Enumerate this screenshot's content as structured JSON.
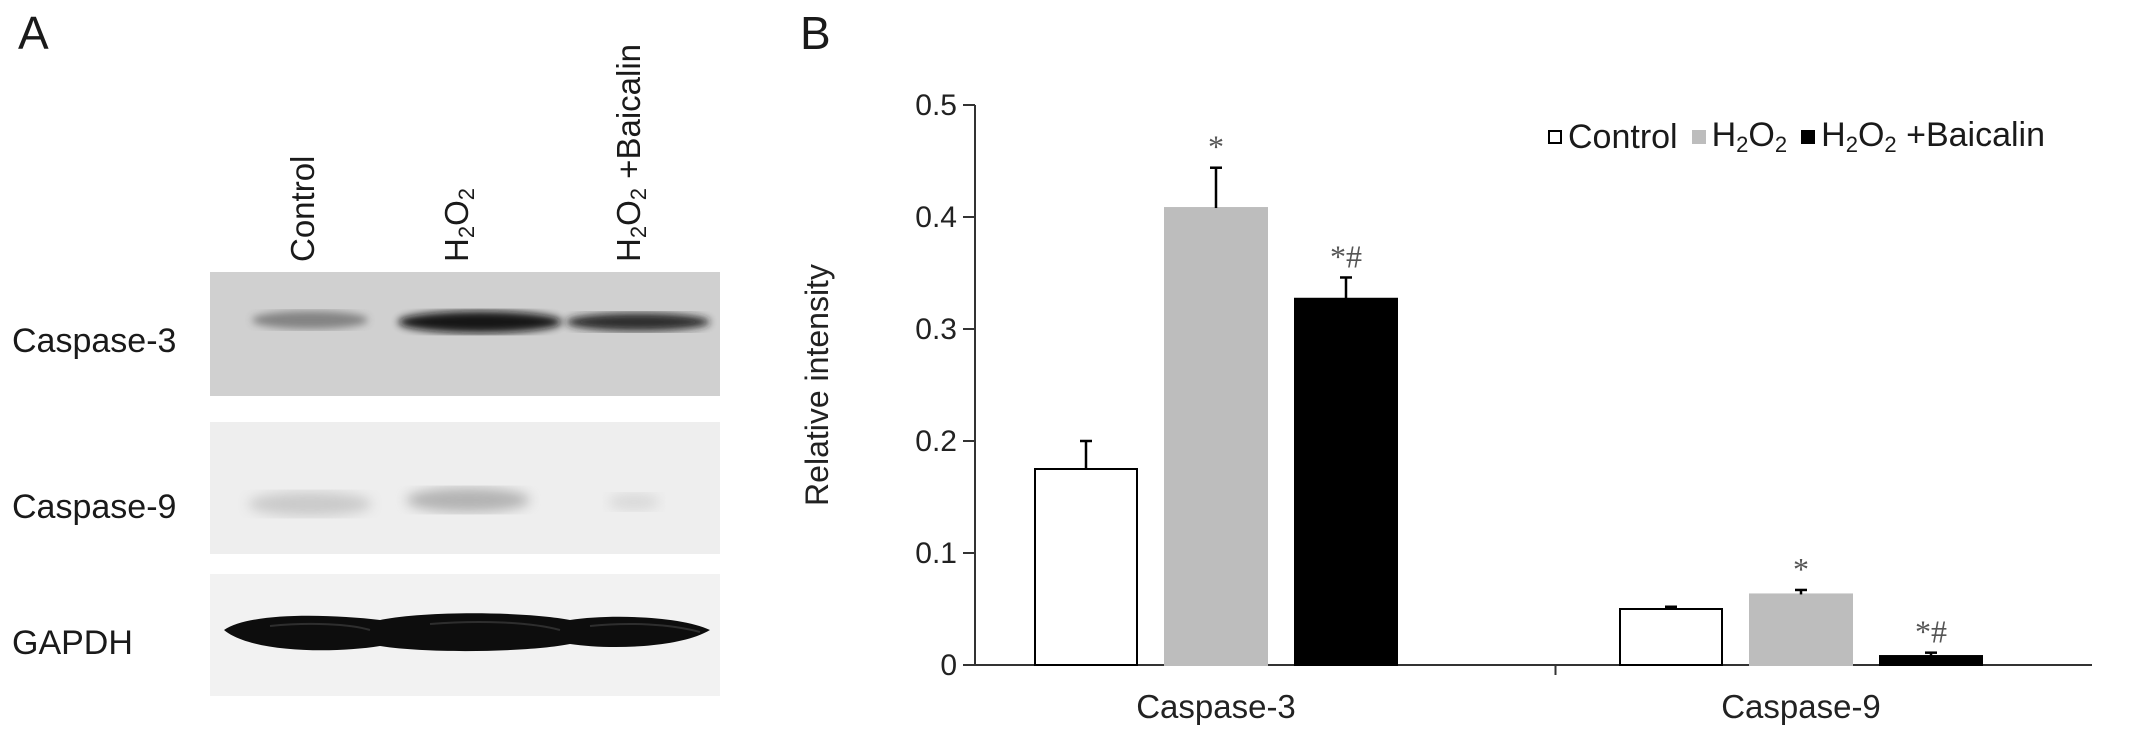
{
  "panel_a": {
    "letter": "A",
    "lanes": [
      {
        "base": "Control",
        "subscripts": []
      },
      {
        "base": "H2O2",
        "parts": [
          "H",
          "2",
          "O",
          "2",
          ""
        ]
      },
      {
        "base": "H2O2 +Baicalin",
        "parts": [
          "H",
          "2",
          "O",
          "2",
          " +Baicalin"
        ]
      }
    ],
    "lane_control": "Control",
    "rows": [
      "Caspase-3",
      "Caspase-9",
      "GAPDH"
    ]
  },
  "panel_b": {
    "letter": "B"
  },
  "legend": [
    {
      "name": "Control",
      "color": "#ffffff"
    },
    {
      "name": "H2O2",
      "color": "#bdbdbd"
    },
    {
      "name": "H2O2 +Baicalin",
      "color": "#000000"
    }
  ],
  "chart_data": {
    "type": "bar",
    "categories": [
      "Caspase-3",
      "Caspase-9"
    ],
    "ylabel": "Relative intensity",
    "ylim": [
      0,
      0.5
    ],
    "yticks": [
      "0",
      "0.1",
      "0.2",
      "0.3",
      "0.4",
      "0.5"
    ],
    "series": [
      {
        "name": "Control",
        "color": "#ffffff",
        "values": [
          0.175,
          0.05
        ],
        "errors": [
          0.025,
          0.002
        ],
        "sig": [
          "",
          ""
        ]
      },
      {
        "name": "H2O2",
        "color": "#bdbdbd",
        "values": [
          0.408,
          0.063
        ],
        "errors": [
          0.036,
          0.004
        ],
        "sig": [
          "*",
          "*"
        ]
      },
      {
        "name": "H2O2 +Baicalin",
        "color": "#000000",
        "values": [
          0.327,
          0.008
        ],
        "errors": [
          0.019,
          0.003
        ],
        "sig": [
          "*#",
          "*#"
        ]
      }
    ],
    "grid": false,
    "legend_position": "top-right"
  }
}
